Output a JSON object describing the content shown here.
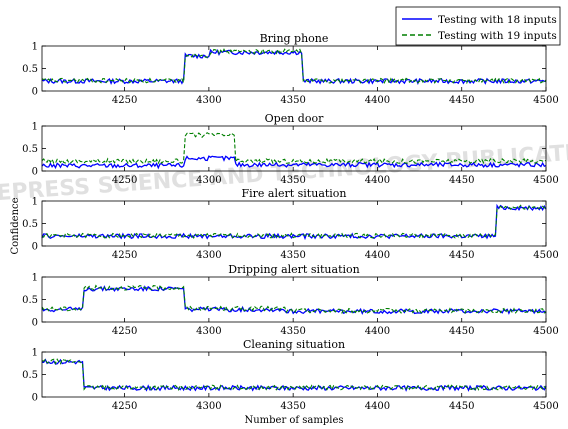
{
  "figure": {
    "xlabel": "Number of samples",
    "ylabel": "Confidence",
    "watermark": "SCITEPRESS SCIENCE AND TECHNOLOGY PUBLICATIONS"
  },
  "legend": {
    "placement": "top-right",
    "entries": [
      {
        "name": "Testing with 18 inputs",
        "color": "#0000ff",
        "style": "solid"
      },
      {
        "name": "Testing with 19 inputs",
        "color": "#007f00",
        "style": "dashed"
      }
    ]
  },
  "chart_data": [
    {
      "type": "line",
      "title": "Bring phone",
      "xlim": [
        4201,
        4500
      ],
      "ylim": [
        0,
        1
      ],
      "xticks": [
        4250,
        4300,
        4350,
        4400,
        4450,
        4500
      ],
      "yticks": [
        0,
        0.5,
        1
      ],
      "series": [
        {
          "name": "Testing with 18 inputs",
          "segments": [
            [
              4201,
              4285,
              0.22
            ],
            [
              4286,
              4300,
              0.78
            ],
            [
              4301,
              4355,
              0.86
            ],
            [
              4356,
              4500,
              0.22
            ]
          ]
        },
        {
          "name": "Testing with 19 inputs",
          "segments": [
            [
              4201,
              4285,
              0.23
            ],
            [
              4286,
              4300,
              0.8
            ],
            [
              4301,
              4355,
              0.88
            ],
            [
              4356,
              4500,
              0.23
            ]
          ]
        }
      ]
    },
    {
      "type": "line",
      "title": "Open door",
      "xlim": [
        4201,
        4500
      ],
      "ylim": [
        0,
        1
      ],
      "xticks": [
        4250,
        4300,
        4350,
        4400,
        4450,
        4500
      ],
      "yticks": [
        0,
        0.5,
        1
      ],
      "series": [
        {
          "name": "Testing with 18 inputs",
          "segments": [
            [
              4201,
              4285,
              0.12
            ],
            [
              4286,
              4315,
              0.28
            ],
            [
              4316,
              4500,
              0.14
            ]
          ]
        },
        {
          "name": "Testing with 19 inputs",
          "segments": [
            [
              4201,
              4285,
              0.22
            ],
            [
              4286,
              4315,
              0.8
            ],
            [
              4316,
              4500,
              0.22
            ]
          ]
        }
      ]
    },
    {
      "type": "line",
      "title": "Fire alert situation",
      "xlim": [
        4201,
        4500
      ],
      "ylim": [
        0,
        1
      ],
      "xticks": [
        4250,
        4300,
        4350,
        4400,
        4450,
        4500
      ],
      "yticks": [
        0,
        0.5,
        1
      ],
      "series": [
        {
          "name": "Testing with 18 inputs",
          "segments": [
            [
              4201,
              4470,
              0.22
            ],
            [
              4471,
              4500,
              0.85
            ]
          ]
        },
        {
          "name": "Testing with 19 inputs",
          "segments": [
            [
              4201,
              4470,
              0.23
            ],
            [
              4471,
              4500,
              0.86
            ]
          ]
        }
      ]
    },
    {
      "type": "line",
      "title": "Dripping alert situation",
      "xlim": [
        4201,
        4500
      ],
      "ylim": [
        0,
        1
      ],
      "xticks": [
        4250,
        4300,
        4350,
        4400,
        4450,
        4500
      ],
      "yticks": [
        0,
        0.5,
        1
      ],
      "series": [
        {
          "name": "Testing with 18 inputs",
          "segments": [
            [
              4201,
              4225,
              0.28
            ],
            [
              4226,
              4285,
              0.74
            ],
            [
              4286,
              4345,
              0.28
            ],
            [
              4346,
              4500,
              0.24
            ]
          ]
        },
        {
          "name": "Testing with 19 inputs",
          "segments": [
            [
              4201,
              4225,
              0.29
            ],
            [
              4226,
              4285,
              0.76
            ],
            [
              4286,
              4345,
              0.3
            ],
            [
              4346,
              4500,
              0.25
            ]
          ]
        }
      ]
    },
    {
      "type": "line",
      "title": "Cleaning situation",
      "xlim": [
        4201,
        4500
      ],
      "ylim": [
        0,
        1
      ],
      "xticks": [
        4250,
        4300,
        4350,
        4400,
        4450,
        4500
      ],
      "yticks": [
        0,
        0.5,
        1
      ],
      "series": [
        {
          "name": "Testing with 18 inputs",
          "segments": [
            [
              4201,
              4225,
              0.78
            ],
            [
              4226,
              4500,
              0.2
            ]
          ]
        },
        {
          "name": "Testing with 19 inputs",
          "segments": [
            [
              4201,
              4225,
              0.79
            ],
            [
              4226,
              4500,
              0.21
            ]
          ]
        }
      ]
    }
  ]
}
